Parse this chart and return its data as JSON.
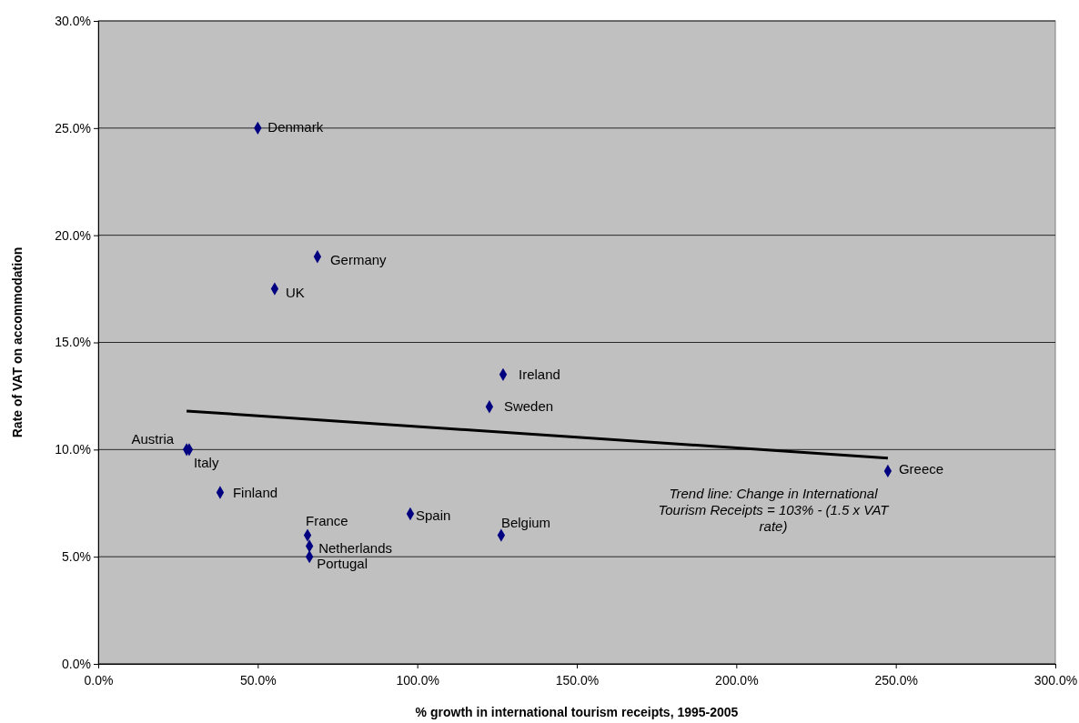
{
  "chart_data": {
    "type": "scatter",
    "xlabel": "% growth in international tourism receipts, 1995-2005",
    "ylabel": "Rate of VAT on accommodation",
    "xlim": [
      0,
      300
    ],
    "ylim": [
      0,
      30
    ],
    "xticks": [
      {
        "value": 0,
        "label": "0.0%"
      },
      {
        "value": 50,
        "label": "50.0%"
      },
      {
        "value": 100,
        "label": "100.0%"
      },
      {
        "value": 150,
        "label": "150.0%"
      },
      {
        "value": 200,
        "label": "200.0%"
      },
      {
        "value": 250,
        "label": "250.0%"
      },
      {
        "value": 300,
        "label": "300.0%"
      }
    ],
    "yticks": [
      {
        "value": 0,
        "label": "0.0%"
      },
      {
        "value": 5,
        "label": "5.0%"
      },
      {
        "value": 10,
        "label": "10.0%"
      },
      {
        "value": 15,
        "label": "15.0%"
      },
      {
        "value": 20,
        "label": "20.0%"
      },
      {
        "value": 25,
        "label": "25.0%"
      },
      {
        "value": 30,
        "label": "30.0%"
      }
    ],
    "grid": "y",
    "series": [
      {
        "marker": "diamond",
        "color": "#000080",
        "x": [
          50,
          68.7,
          55.3,
          126.9,
          122.6,
          27.7,
          28.5,
          38.2,
          65.6,
          66.2,
          66.2,
          97.8,
          126.3,
          247.5
        ],
        "values": [
          25,
          19,
          17.5,
          13.5,
          12,
          10,
          10,
          8,
          6,
          5.5,
          5,
          7,
          6,
          9
        ]
      },
      {
        "type": "line",
        "marker": "none",
        "color": "#000000",
        "x": [
          27.7,
          247.5
        ],
        "values": [
          11.8,
          9.6
        ]
      }
    ],
    "annotations": [
      {
        "text": "Denmark",
        "x": 50,
        "y": 25
      },
      {
        "text": "Germany",
        "x": 68.7,
        "y": 19
      },
      {
        "text": "UK",
        "x": 55.3,
        "y": 17.5
      },
      {
        "text": "Ireland",
        "x": 126.9,
        "y": 13.5
      },
      {
        "text": "Sweden",
        "x": 122.6,
        "y": 12
      },
      {
        "text": "Austria",
        "x": 27.7,
        "y": 10
      },
      {
        "text": "Italy",
        "x": 28.5,
        "y": 10
      },
      {
        "text": "Finland",
        "x": 38.2,
        "y": 8
      },
      {
        "text": "France",
        "x": 65.6,
        "y": 6
      },
      {
        "text": "Netherlands",
        "x": 66.2,
        "y": 5.5
      },
      {
        "text": "Portugal",
        "x": 66.2,
        "y": 5
      },
      {
        "text": "Spain",
        "x": 97.8,
        "y": 7
      },
      {
        "text": "Belgium",
        "x": 126.3,
        "y": 6
      },
      {
        "text": "Greece",
        "x": 247.5,
        "y": 9
      },
      "Trend line: Change in International Tourism Receipts = 103% - (1.5 x VAT rate)"
    ]
  }
}
